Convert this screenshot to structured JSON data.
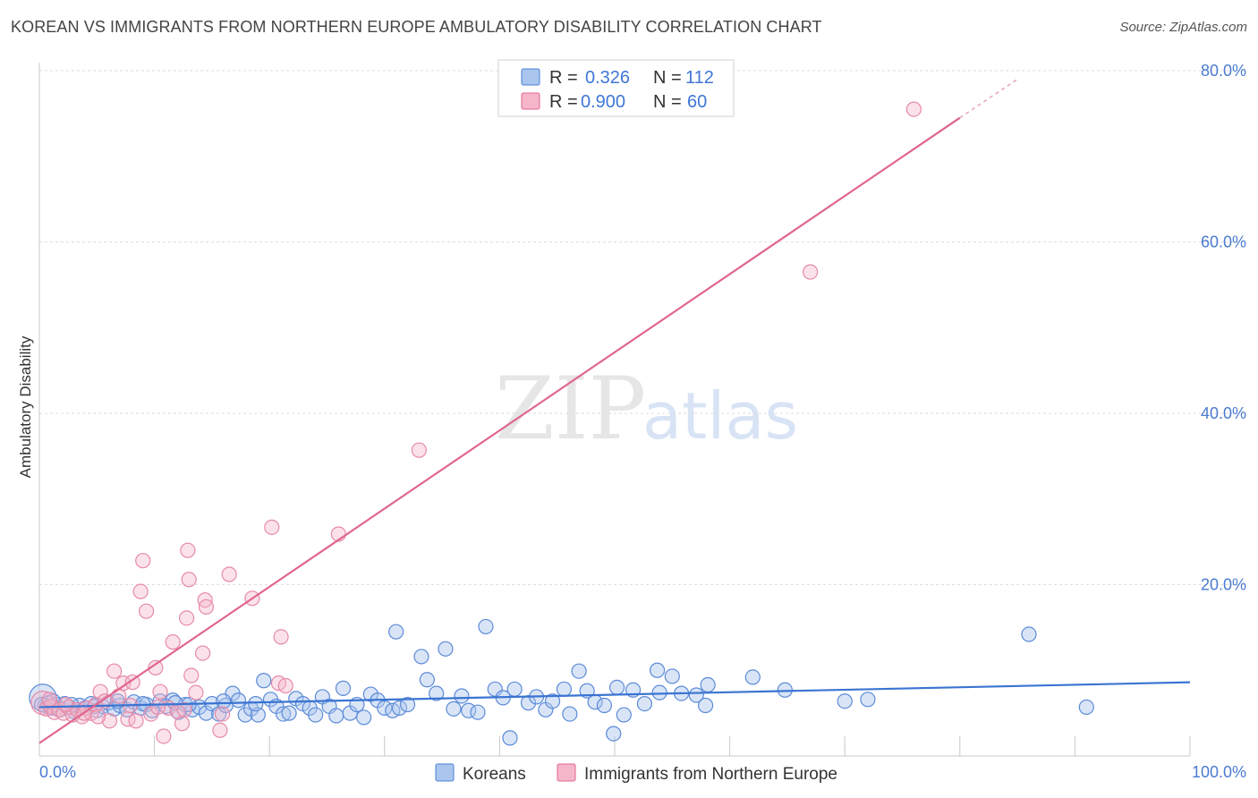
{
  "title": "KOREAN VS IMMIGRANTS FROM NORTHERN EUROPE AMBULATORY DISABILITY CORRELATION CHART",
  "source": "Source: ZipAtlas.com",
  "colors": {
    "blue": "#4a7fd4",
    "blue_fill": "#aac6ee",
    "pink": "#e0668e",
    "pink_fill": "#f6b6ca",
    "tick": "#4a7bd0"
  },
  "legend": {
    "rows": [
      {
        "r_label": "R =",
        "r_value": "0.326",
        "n_label": "N =",
        "n_value": "112"
      },
      {
        "r_label": "R =",
        "r_value": "0.900",
        "n_label": "N =",
        "n_value": "60"
      }
    ]
  },
  "watermark": {
    "zip": "ZIP",
    "atlas": "atlas"
  },
  "chart_data": {
    "type": "scatter",
    "title": "KOREAN VS IMMIGRANTS FROM NORTHERN EUROPE AMBULATORY DISABILITY CORRELATION CHART",
    "xlabel": "",
    "ylabel": "Ambulatory Disability",
    "xlim": [
      0,
      100
    ],
    "ylim": [
      0,
      80
    ],
    "x_tick_labels": [
      "0.0%",
      "100.0%"
    ],
    "y_ticks": [
      20,
      40,
      60,
      80
    ],
    "y_tick_labels": [
      "20.0%",
      "40.0%",
      "60.0%",
      "80.0%"
    ],
    "grid": true,
    "series": [
      {
        "name": "Koreans",
        "r": 0.326,
        "n": 112,
        "trend": {
          "x": [
            0,
            100
          ],
          "y": [
            5.7,
            8.6
          ]
        },
        "points": [
          [
            0.3,
            6.8
          ],
          [
            0.5,
            5.9
          ],
          [
            0.8,
            6.2
          ],
          [
            1.0,
            5.6
          ],
          [
            1.4,
            6.0
          ],
          [
            1.8,
            5.4
          ],
          [
            2.2,
            6.1
          ],
          [
            2.6,
            5.7
          ],
          [
            3.0,
            5.2
          ],
          [
            3.5,
            5.9
          ],
          [
            4.0,
            5.6
          ],
          [
            4.5,
            6.1
          ],
          [
            5.0,
            5.3
          ],
          [
            5.5,
            5.8
          ],
          [
            6.0,
            6.2
          ],
          [
            6.5,
            5.5
          ],
          [
            7.0,
            5.9
          ],
          [
            7.6,
            5.4
          ],
          [
            8.2,
            6.3
          ],
          [
            8.8,
            5.6
          ],
          [
            9.3,
            6.0
          ],
          [
            9.8,
            5.3
          ],
          [
            10.5,
            6.4
          ],
          [
            11.0,
            5.8
          ],
          [
            11.6,
            6.5
          ],
          [
            12.1,
            5.1
          ],
          [
            12.7,
            6.0
          ],
          [
            13.3,
            5.4
          ],
          [
            13.9,
            5.7
          ],
          [
            14.5,
            5.0
          ],
          [
            15.0,
            6.1
          ],
          [
            15.6,
            4.9
          ],
          [
            16.2,
            5.9
          ],
          [
            16.8,
            7.3
          ],
          [
            17.3,
            6.5
          ],
          [
            17.9,
            4.8
          ],
          [
            18.4,
            5.5
          ],
          [
            19.0,
            4.8
          ],
          [
            19.5,
            8.8
          ],
          [
            20.1,
            6.6
          ],
          [
            20.6,
            5.8
          ],
          [
            21.2,
            4.9
          ],
          [
            21.7,
            5.0
          ],
          [
            22.3,
            6.7
          ],
          [
            22.9,
            6.1
          ],
          [
            23.5,
            5.6
          ],
          [
            24.0,
            4.8
          ],
          [
            24.6,
            6.9
          ],
          [
            25.2,
            5.8
          ],
          [
            25.8,
            4.7
          ],
          [
            26.4,
            7.9
          ],
          [
            27.0,
            5.0
          ],
          [
            27.6,
            6.0
          ],
          [
            28.2,
            4.5
          ],
          [
            28.8,
            7.2
          ],
          [
            29.4,
            6.5
          ],
          [
            30.0,
            5.6
          ],
          [
            30.7,
            5.3
          ],
          [
            31.3,
            5.6
          ],
          [
            32.0,
            6.0
          ],
          [
            31.0,
            14.5
          ],
          [
            33.2,
            11.6
          ],
          [
            33.7,
            8.9
          ],
          [
            34.5,
            7.3
          ],
          [
            35.3,
            12.5
          ],
          [
            36.0,
            5.5
          ],
          [
            36.7,
            7.0
          ],
          [
            37.3,
            5.3
          ],
          [
            38.1,
            5.1
          ],
          [
            38.8,
            15.1
          ],
          [
            39.6,
            7.8
          ],
          [
            40.3,
            6.8
          ],
          [
            40.9,
            2.1
          ],
          [
            41.3,
            7.8
          ],
          [
            42.5,
            6.2
          ],
          [
            43.2,
            6.9
          ],
          [
            44.0,
            5.4
          ],
          [
            44.6,
            6.4
          ],
          [
            45.6,
            7.8
          ],
          [
            46.1,
            4.9
          ],
          [
            46.9,
            9.9
          ],
          [
            47.6,
            7.6
          ],
          [
            48.3,
            6.3
          ],
          [
            49.1,
            5.9
          ],
          [
            49.9,
            2.6
          ],
          [
            50.2,
            8.0
          ],
          [
            50.8,
            4.8
          ],
          [
            51.6,
            7.7
          ],
          [
            52.6,
            6.1
          ],
          [
            53.7,
            10.0
          ],
          [
            53.9,
            7.4
          ],
          [
            55.0,
            9.3
          ],
          [
            55.8,
            7.3
          ],
          [
            57.1,
            7.1
          ],
          [
            58.1,
            8.3
          ],
          [
            57.9,
            5.9
          ],
          [
            62.0,
            9.2
          ],
          [
            64.8,
            7.7
          ],
          [
            70.0,
            6.4
          ],
          [
            72.0,
            6.6
          ],
          [
            86.0,
            14.2
          ],
          [
            91.0,
            5.7
          ],
          [
            0.2,
            6.0
          ],
          [
            1.2,
            6.4
          ],
          [
            2.8,
            6.0
          ],
          [
            4.8,
            5.8
          ],
          [
            6.8,
            6.4
          ],
          [
            9.0,
            6.1
          ],
          [
            11.8,
            6.2
          ],
          [
            13.0,
            6.0
          ],
          [
            16.0,
            6.4
          ],
          [
            18.8,
            6.1
          ]
        ]
      },
      {
        "name": "Immigrants from Northern Europe",
        "r": 0.9,
        "n": 60,
        "trend": {
          "x": [
            0,
            80
          ],
          "y": [
            1.5,
            74.5
          ]
        },
        "trend_extension": {
          "x": [
            80,
            85
          ],
          "y": [
            74.5,
            79.0
          ]
        },
        "points": [
          [
            0.3,
            6.2
          ],
          [
            0.6,
            5.5
          ],
          [
            1.0,
            5.8
          ],
          [
            1.3,
            5.1
          ],
          [
            1.7,
            5.4
          ],
          [
            2.1,
            5.0
          ],
          [
            2.5,
            5.7
          ],
          [
            2.9,
            4.8
          ],
          [
            3.3,
            5.4
          ],
          [
            3.7,
            4.6
          ],
          [
            4.1,
            5.6
          ],
          [
            4.5,
            5.0
          ],
          [
            4.9,
            6.0
          ],
          [
            5.3,
            7.5
          ],
          [
            5.7,
            6.4
          ],
          [
            6.1,
            4.1
          ],
          [
            6.5,
            9.9
          ],
          [
            6.9,
            7.0
          ],
          [
            7.3,
            8.5
          ],
          [
            7.7,
            4.3
          ],
          [
            8.1,
            8.6
          ],
          [
            8.4,
            4.1
          ],
          [
            8.8,
            19.2
          ],
          [
            9.0,
            22.8
          ],
          [
            9.3,
            16.9
          ],
          [
            9.7,
            4.9
          ],
          [
            10.1,
            10.3
          ],
          [
            10.5,
            7.5
          ],
          [
            10.8,
            2.3
          ],
          [
            11.2,
            5.6
          ],
          [
            11.6,
            13.3
          ],
          [
            12.0,
            5.2
          ],
          [
            12.4,
            3.8
          ],
          [
            12.8,
            16.1
          ],
          [
            13.2,
            9.4
          ],
          [
            13.6,
            7.4
          ],
          [
            12.9,
            24.0
          ],
          [
            13.0,
            20.6
          ],
          [
            14.2,
            12.0
          ],
          [
            14.4,
            18.2
          ],
          [
            14.5,
            17.4
          ],
          [
            15.9,
            4.9
          ],
          [
            15.7,
            3.0
          ],
          [
            16.5,
            21.2
          ],
          [
            18.5,
            18.4
          ],
          [
            20.2,
            26.7
          ],
          [
            20.8,
            8.5
          ],
          [
            21.0,
            13.9
          ],
          [
            21.4,
            8.2
          ],
          [
            26.0,
            25.9
          ],
          [
            33.0,
            35.7
          ],
          [
            67.0,
            56.5
          ],
          [
            76.0,
            75.5
          ],
          [
            0.9,
            6.6
          ],
          [
            2.3,
            6.0
          ],
          [
            3.9,
            5.0
          ],
          [
            5.1,
            4.6
          ],
          [
            7.9,
            5.9
          ],
          [
            10.3,
            5.7
          ],
          [
            12.6,
            5.4
          ]
        ]
      }
    ]
  },
  "bottom_legend": {
    "items": [
      "Koreans",
      "Immigrants from Northern Europe"
    ]
  }
}
